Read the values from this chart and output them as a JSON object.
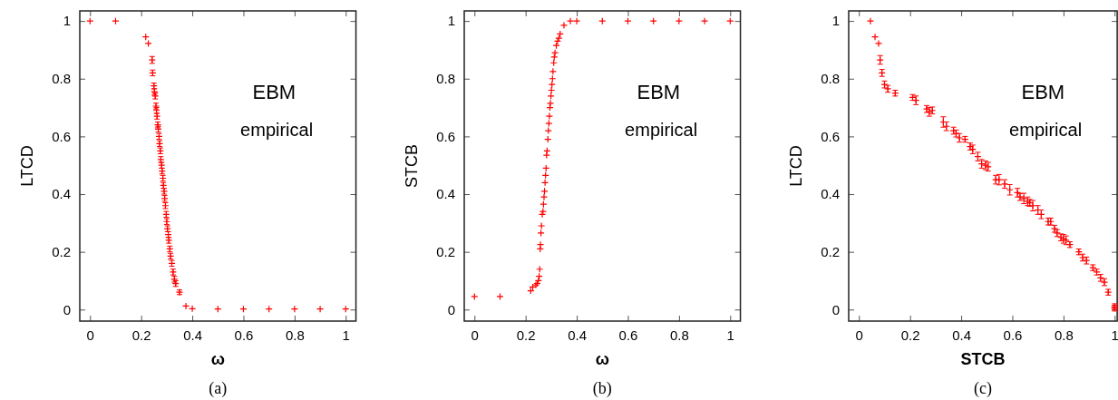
{
  "chart_data": [
    {
      "type": "scatter",
      "xlabel": "ω",
      "ylabel": "LTCD",
      "marker": "cross",
      "xlim": [
        -0.04,
        1.04
      ],
      "ylim": [
        -0.04,
        1.035
      ],
      "xticks": [
        0,
        0.2,
        0.4,
        0.6,
        0.8,
        1
      ],
      "yticks": [
        0,
        0.2,
        0.4,
        0.6,
        0.8,
        1
      ],
      "annotations": [
        "EBM",
        "empirical",
        "(a)"
      ],
      "series": [
        {
          "color": "#ff0000",
          "x": [
            0,
            0.1,
            0.218,
            0.228,
            0.243,
            0.245,
            0.25,
            0.252,
            0.255,
            0.258,
            0.26,
            0.262,
            0.265,
            0.267,
            0.27,
            0.272,
            0.275,
            0.277,
            0.28,
            0.282,
            0.285,
            0.287,
            0.29,
            0.292,
            0.295,
            0.298,
            0.3,
            0.303,
            0.306,
            0.308,
            0.312,
            0.315,
            0.32,
            0.325,
            0.33,
            0.335,
            0.35,
            0.375,
            0.4,
            0.5,
            0.6,
            0.7,
            0.8,
            0.9,
            1
          ],
          "values": [
            1,
            1,
            0.945,
            0.922,
            0.865,
            0.82,
            0.775,
            0.755,
            0.74,
            0.705,
            0.69,
            0.67,
            0.64,
            0.625,
            0.6,
            0.575,
            0.55,
            0.52,
            0.5,
            0.48,
            0.455,
            0.43,
            0.41,
            0.385,
            0.36,
            0.33,
            0.305,
            0.28,
            0.26,
            0.24,
            0.21,
            0.185,
            0.16,
            0.13,
            0.105,
            0.09,
            0.06,
            0.012,
            0.003,
            0.002,
            0.002,
            0.002,
            0.002,
            0.002,
            0.002
          ],
          "errors": [
            null,
            null,
            null,
            null,
            0.012,
            0.01,
            0.01,
            0.01,
            0.01,
            0.01,
            0.01,
            0.01,
            0.01,
            0.01,
            0.01,
            0.01,
            0.01,
            0.01,
            0.01,
            0.01,
            0.01,
            0.01,
            0.01,
            0.01,
            0.01,
            0.01,
            0.01,
            0.01,
            0.01,
            0.01,
            0.01,
            0.01,
            0.01,
            0.01,
            0.01,
            0.01,
            0.008,
            null,
            null,
            null,
            null,
            null,
            null,
            null,
            null
          ]
        }
      ]
    },
    {
      "type": "scatter",
      "xlabel": "ω",
      "ylabel": "STCB",
      "marker": "cross",
      "xlim": [
        -0.04,
        1.04
      ],
      "ylim": [
        -0.04,
        1.035
      ],
      "xticks": [
        0,
        0.2,
        0.4,
        0.6,
        0.8,
        1
      ],
      "yticks": [
        0,
        0.2,
        0.4,
        0.6,
        0.8,
        1
      ],
      "annotations": [
        "EBM",
        "empirical",
        "(b)"
      ],
      "series": [
        {
          "color": "#ff0000",
          "x": [
            0,
            0.1,
            0.22,
            0.228,
            0.24,
            0.245,
            0.25,
            0.253,
            0.255,
            0.257,
            0.258,
            0.26,
            0.262,
            0.265,
            0.268,
            0.27,
            0.272,
            0.274,
            0.276,
            0.278,
            0.28,
            0.282,
            0.284,
            0.287,
            0.289,
            0.291,
            0.293,
            0.295,
            0.297,
            0.299,
            0.301,
            0.303,
            0.305,
            0.307,
            0.31,
            0.312,
            0.315,
            0.32,
            0.325,
            0.33,
            0.335,
            0.35,
            0.375,
            0.4,
            0.5,
            0.6,
            0.7,
            0.8,
            0.9,
            1
          ],
          "values": [
            0.045,
            0.045,
            0.065,
            0.078,
            0.085,
            0.09,
            0.1,
            0.115,
            0.14,
            0.21,
            0.225,
            0.265,
            0.29,
            0.33,
            0.34,
            0.365,
            0.39,
            0.41,
            0.44,
            0.465,
            0.49,
            0.535,
            0.55,
            0.59,
            0.62,
            0.645,
            0.67,
            0.7,
            0.715,
            0.74,
            0.76,
            0.78,
            0.8,
            0.825,
            0.855,
            0.875,
            0.89,
            0.915,
            0.93,
            0.94,
            0.955,
            0.985,
            1,
            1,
            1,
            1,
            1,
            1,
            1,
            1
          ]
        }
      ]
    },
    {
      "type": "scatter",
      "xlabel": "STCB",
      "ylabel": "LTCD",
      "marker": "cross",
      "xlim": [
        -0.04,
        1.01
      ],
      "ylim": [
        -0.04,
        1.035
      ],
      "xticks": [
        0,
        0.2,
        0.4,
        0.6,
        0.8,
        1
      ],
      "yticks": [
        0,
        0.2,
        0.4,
        0.6,
        0.8,
        1
      ],
      "annotations": [
        "EBM",
        "empirical",
        "(c)"
      ],
      "series": [
        {
          "color": "#ff0000",
          "x": [
            0.045,
            0.063,
            0.077,
            0.083,
            0.09,
            0.1,
            0.113,
            0.142,
            0.21,
            0.223,
            0.265,
            0.275,
            0.287,
            0.33,
            0.342,
            0.37,
            0.38,
            0.393,
            0.415,
            0.435,
            0.445,
            0.465,
            0.48,
            0.495,
            0.505,
            0.535,
            0.548,
            0.57,
            0.59,
            0.62,
            0.63,
            0.645,
            0.66,
            0.668,
            0.68,
            0.7,
            0.713,
            0.74,
            0.75,
            0.765,
            0.775,
            0.79,
            0.8,
            0.81,
            0.825,
            0.86,
            0.875,
            0.89,
            0.915,
            0.93,
            0.945,
            0.96,
            0.975,
            1,
            1
          ],
          "values": [
            1,
            0.945,
            0.922,
            0.865,
            0.82,
            0.78,
            0.765,
            0.75,
            0.735,
            0.725,
            0.695,
            0.685,
            0.69,
            0.65,
            0.635,
            0.62,
            0.61,
            0.595,
            0.59,
            0.565,
            0.555,
            0.53,
            0.505,
            0.5,
            0.495,
            0.45,
            0.45,
            0.435,
            0.415,
            0.405,
            0.39,
            0.385,
            0.375,
            0.37,
            0.36,
            0.345,
            0.33,
            0.305,
            0.305,
            0.28,
            0.265,
            0.25,
            0.245,
            0.24,
            0.225,
            0.2,
            0.18,
            0.17,
            0.145,
            0.13,
            0.11,
            0.095,
            0.06,
            0.01,
            0.005
          ],
          "errors": [
            null,
            null,
            null,
            0.015,
            0.012,
            0.012,
            0.012,
            0.01,
            0.01,
            0.015,
            0.012,
            0.015,
            0.012,
            0.018,
            0.015,
            0.012,
            0.012,
            0.015,
            0.01,
            0.012,
            0.015,
            0.015,
            0.015,
            0.015,
            0.015,
            0.015,
            0.018,
            0.015,
            0.018,
            0.015,
            0.012,
            0.018,
            0.015,
            0.012,
            0.018,
            0.015,
            0.015,
            0.012,
            0.012,
            0.012,
            0.012,
            0.012,
            0.015,
            0.015,
            0.01,
            0.01,
            0.012,
            0.012,
            0.01,
            0.01,
            0.012,
            0.012,
            0.01,
            0.01,
            0.01
          ]
        }
      ]
    }
  ]
}
